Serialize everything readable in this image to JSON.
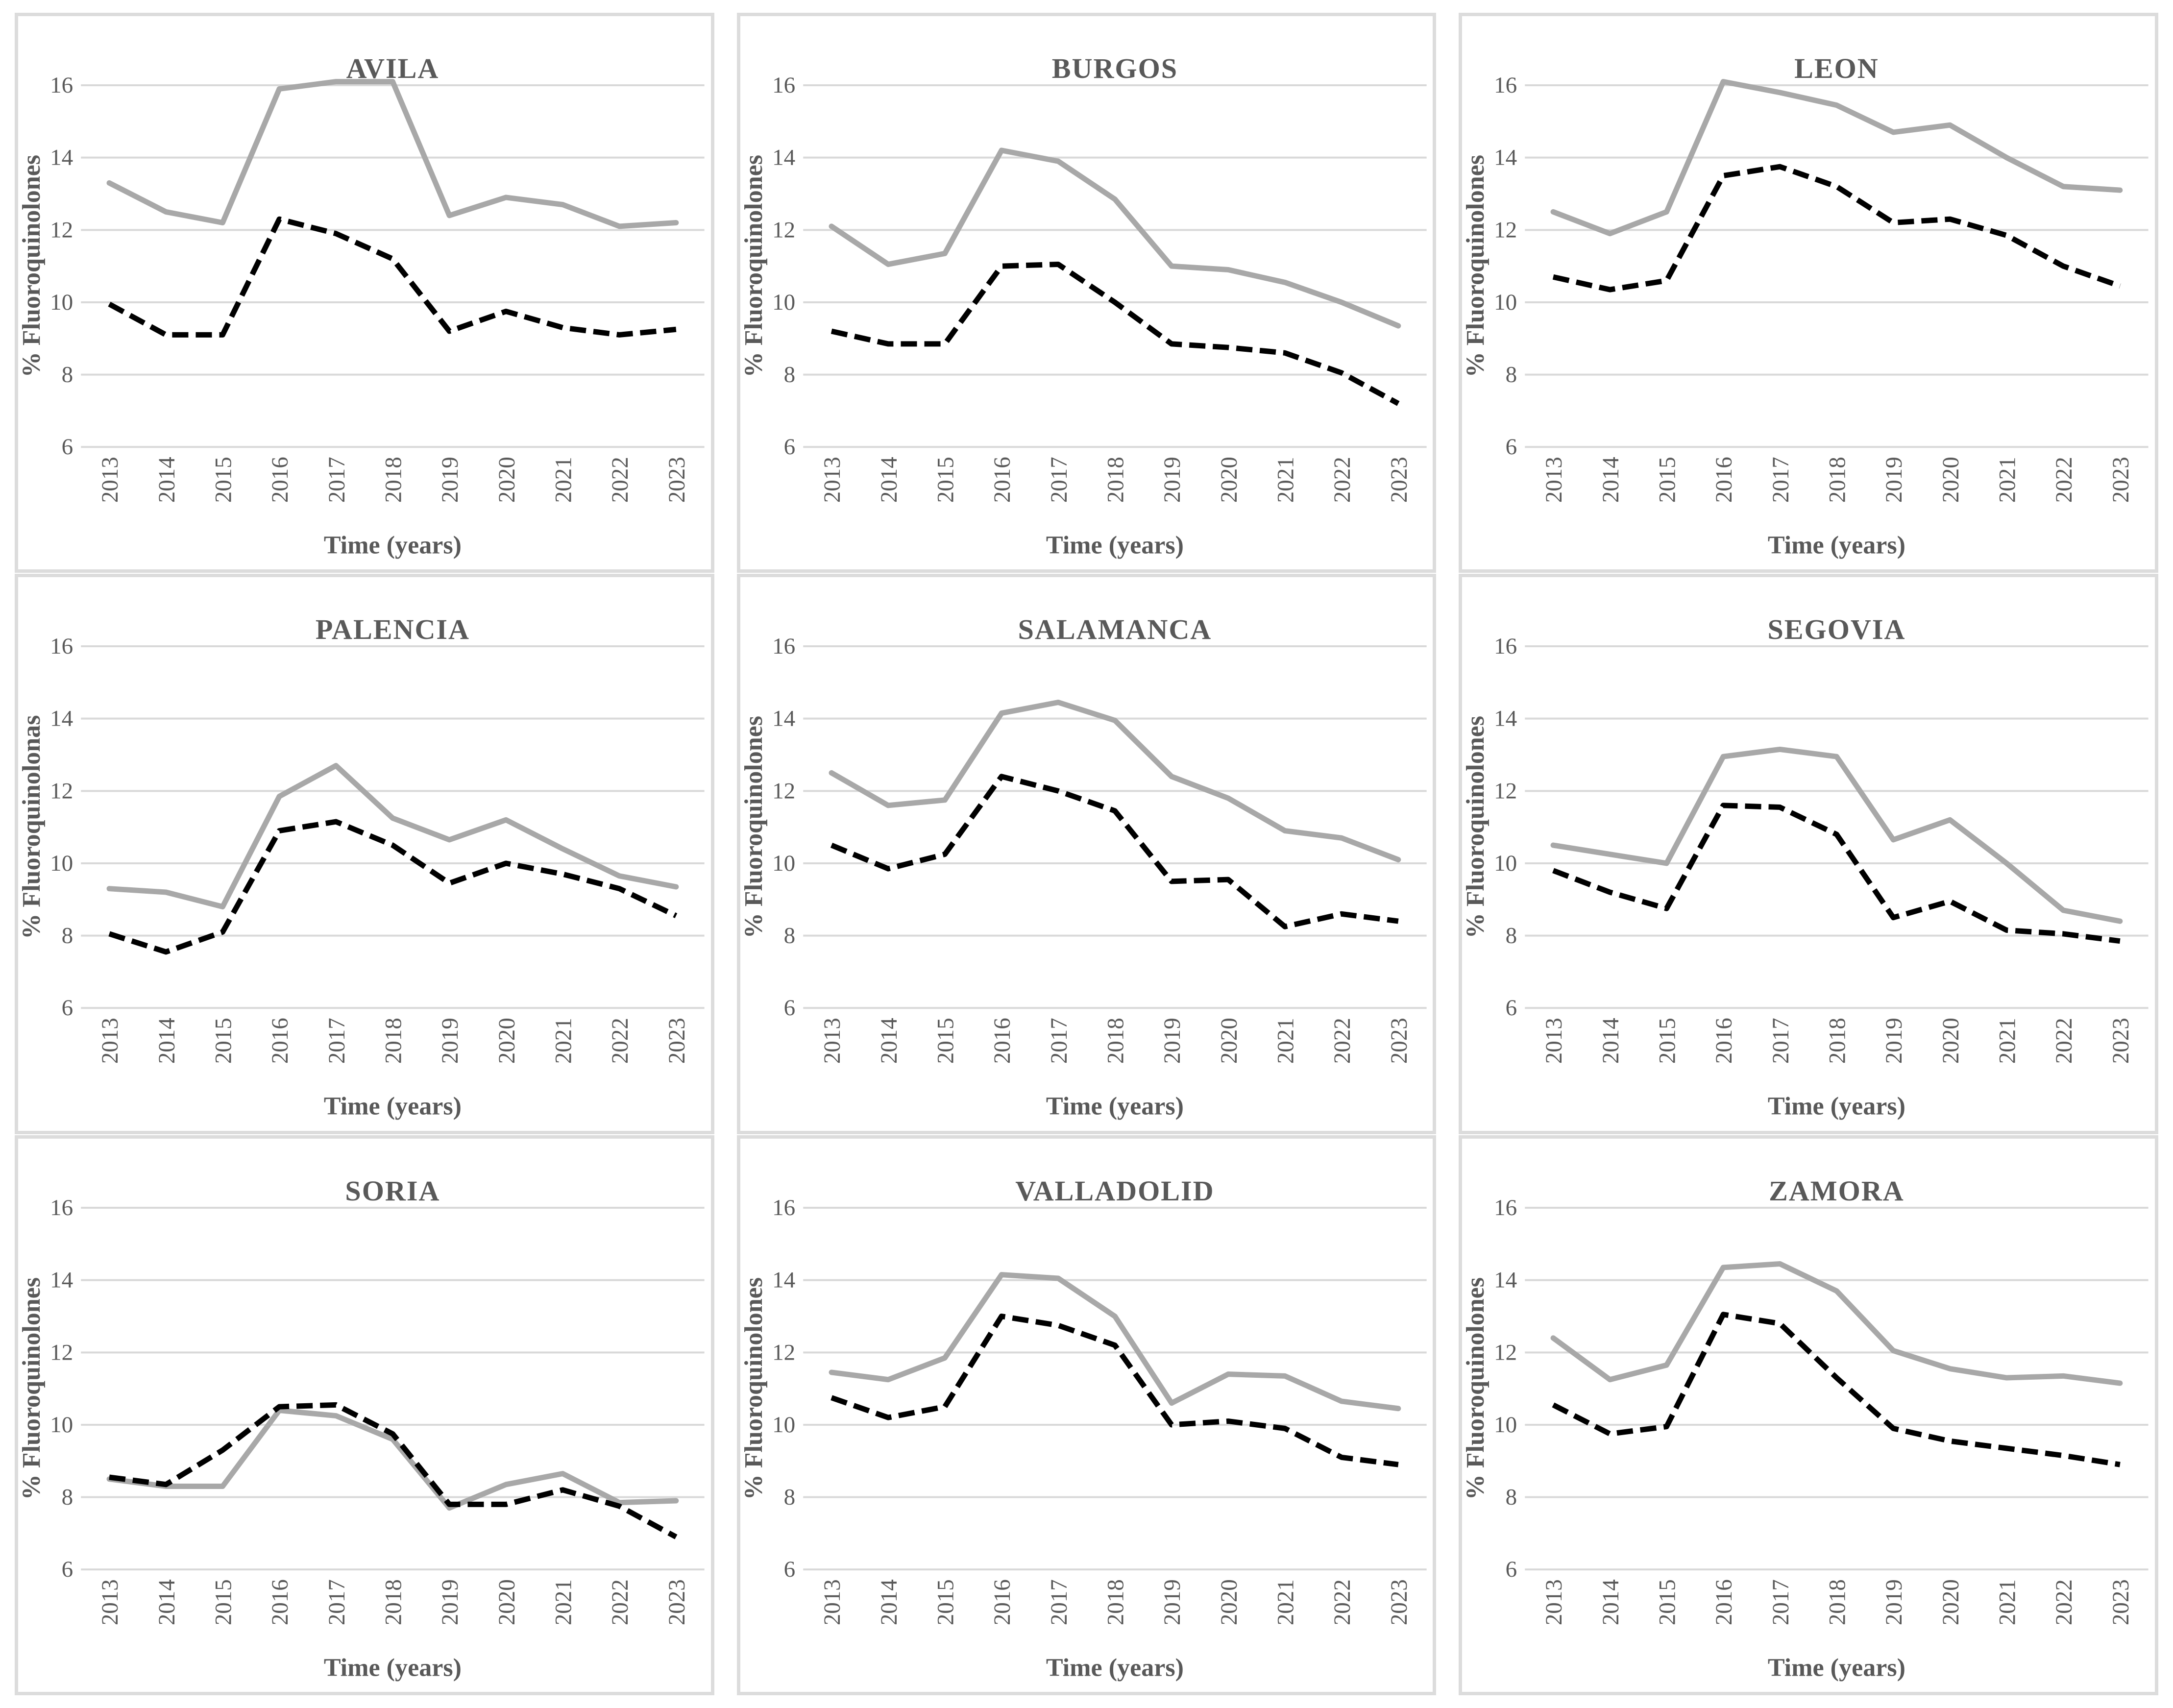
{
  "chart_style": {
    "solid_color": "#a8a8a8",
    "dashed_color": "#000000",
    "grid_color": "#d9d9d9",
    "text_color": "#595959",
    "panel_border_color": "#dcdcdc",
    "solid_width": 11,
    "dashed_width": 11,
    "dash_pattern": "33 15"
  },
  "chart_data": [
    {
      "type": "line",
      "title": "AVILA",
      "xlabel": "Time (years)",
      "ylabel": "% Fluoroquinolones",
      "categories": [
        "2013",
        "2014",
        "2015",
        "2016",
        "2017",
        "2018",
        "2019",
        "2020",
        "2021",
        "2022",
        "2023"
      ],
      "yticks": [
        6,
        8,
        10,
        12,
        14,
        16
      ],
      "ylim": [
        6,
        17.3
      ],
      "grid": true,
      "legend_position": "none",
      "series": [
        {
          "name": "solid",
          "style": "solid",
          "values": [
            13.3,
            12.5,
            12.2,
            15.9,
            16.1,
            16.1,
            12.4,
            12.9,
            12.7,
            12.1,
            12.2
          ]
        },
        {
          "name": "dashed",
          "style": "dashed",
          "values": [
            9.95,
            9.1,
            9.1,
            12.3,
            11.9,
            11.2,
            9.2,
            9.75,
            9.3,
            9.1,
            9.25
          ]
        }
      ]
    },
    {
      "type": "line",
      "title": "BURGOS",
      "xlabel": "Time (years)",
      "ylabel": "% Fluoroquinolones",
      "categories": [
        "2013",
        "2014",
        "2015",
        "2016",
        "2017",
        "2018",
        "2019",
        "2020",
        "2021",
        "2022",
        "2023"
      ],
      "yticks": [
        6,
        8,
        10,
        12,
        14,
        16
      ],
      "ylim": [
        6,
        17.3
      ],
      "grid": true,
      "legend_position": "none",
      "series": [
        {
          "name": "solid",
          "style": "solid",
          "values": [
            12.1,
            11.05,
            11.35,
            14.2,
            13.9,
            12.85,
            11.0,
            10.9,
            10.55,
            10.0,
            9.35
          ]
        },
        {
          "name": "dashed",
          "style": "dashed",
          "values": [
            9.2,
            8.85,
            8.85,
            11.0,
            11.05,
            10.0,
            8.85,
            8.75,
            8.6,
            8.05,
            7.2
          ]
        }
      ]
    },
    {
      "type": "line",
      "title": "LEON",
      "xlabel": "Time (years)",
      "ylabel": "% Fluoroquinolones",
      "categories": [
        "2013",
        "2014",
        "2015",
        "2016",
        "2017",
        "2018",
        "2019",
        "2020",
        "2021",
        "2022",
        "2023"
      ],
      "yticks": [
        6,
        8,
        10,
        12,
        14,
        16
      ],
      "ylim": [
        6,
        17.3
      ],
      "grid": true,
      "legend_position": "none",
      "series": [
        {
          "name": "solid",
          "style": "solid",
          "values": [
            12.5,
            11.9,
            12.5,
            16.1,
            15.8,
            15.45,
            14.7,
            14.9,
            14.0,
            13.2,
            13.1
          ]
        },
        {
          "name": "dashed",
          "style": "dashed",
          "values": [
            10.7,
            10.35,
            10.6,
            13.5,
            13.75,
            13.2,
            12.2,
            12.3,
            11.85,
            11.0,
            10.45
          ]
        }
      ]
    },
    {
      "type": "line",
      "title": "PALENCIA",
      "xlabel": "Time (years)",
      "ylabel": "% Fluoroquinolonas",
      "categories": [
        "2013",
        "2014",
        "2015",
        "2016",
        "2017",
        "2018",
        "2019",
        "2020",
        "2021",
        "2022",
        "2023"
      ],
      "yticks": [
        6,
        8,
        10,
        12,
        14,
        16
      ],
      "ylim": [
        6,
        17.3
      ],
      "grid": true,
      "legend_position": "none",
      "series": [
        {
          "name": "solid",
          "style": "solid",
          "values": [
            9.3,
            9.2,
            8.8,
            11.85,
            12.7,
            11.25,
            10.65,
            11.2,
            10.4,
            9.65,
            9.35
          ]
        },
        {
          "name": "dashed",
          "style": "dashed",
          "values": [
            8.05,
            7.55,
            8.1,
            10.9,
            11.15,
            10.5,
            9.45,
            10.0,
            9.7,
            9.3,
            8.55
          ]
        }
      ]
    },
    {
      "type": "line",
      "title": "SALAMANCA",
      "xlabel": "Time (years)",
      "ylabel": "% Fluoroquinolones",
      "categories": [
        "2013",
        "2014",
        "2015",
        "2016",
        "2017",
        "2018",
        "2019",
        "2020",
        "2021",
        "2022",
        "2023"
      ],
      "yticks": [
        6,
        8,
        10,
        12,
        14,
        16
      ],
      "ylim": [
        6,
        17.3
      ],
      "grid": true,
      "legend_position": "none",
      "series": [
        {
          "name": "solid",
          "style": "solid",
          "values": [
            12.5,
            11.6,
            11.75,
            14.15,
            14.45,
            13.95,
            12.4,
            11.8,
            10.9,
            10.7,
            10.1
          ]
        },
        {
          "name": "dashed",
          "style": "dashed",
          "values": [
            10.5,
            9.85,
            10.25,
            12.4,
            12.0,
            11.45,
            9.5,
            9.55,
            8.25,
            8.6,
            8.4
          ]
        }
      ]
    },
    {
      "type": "line",
      "title": "SEGOVIA",
      "xlabel": "Time (years)",
      "ylabel": "% Fluoroquinolones",
      "categories": [
        "2013",
        "2014",
        "2015",
        "2016",
        "2017",
        "2018",
        "2019",
        "2020",
        "2021",
        "2022",
        "2023"
      ],
      "yticks": [
        6,
        8,
        10,
        12,
        14,
        16
      ],
      "ylim": [
        6,
        17.3
      ],
      "grid": true,
      "legend_position": "none",
      "series": [
        {
          "name": "solid",
          "style": "solid",
          "values": [
            10.5,
            10.25,
            10.0,
            12.95,
            13.15,
            12.95,
            10.65,
            11.2,
            10.0,
            8.7,
            8.4
          ]
        },
        {
          "name": "dashed",
          "style": "dashed",
          "values": [
            9.8,
            9.2,
            8.75,
            11.6,
            11.55,
            10.8,
            8.5,
            8.95,
            8.15,
            8.05,
            7.85
          ]
        }
      ]
    },
    {
      "type": "line",
      "title": "SORIA",
      "xlabel": "Time (years)",
      "ylabel": "% Fluoroquinolones",
      "categories": [
        "2013",
        "2014",
        "2015",
        "2016",
        "2017",
        "2018",
        "2019",
        "2020",
        "2021",
        "2022",
        "2023"
      ],
      "yticks": [
        6,
        8,
        10,
        12,
        14,
        16
      ],
      "ylim": [
        6,
        17.3
      ],
      "grid": true,
      "legend_position": "none",
      "series": [
        {
          "name": "solid",
          "style": "solid",
          "values": [
            8.5,
            8.3,
            8.3,
            10.4,
            10.25,
            9.6,
            7.7,
            8.35,
            8.65,
            7.85,
            7.9
          ]
        },
        {
          "name": "dashed",
          "style": "dashed",
          "values": [
            8.55,
            8.35,
            9.3,
            10.5,
            10.55,
            9.75,
            7.8,
            7.8,
            8.2,
            7.75,
            6.9
          ]
        }
      ]
    },
    {
      "type": "line",
      "title": "VALLADOLID",
      "xlabel": "Time (years)",
      "ylabel": "% Fluoroquinolones",
      "categories": [
        "2013",
        "2014",
        "2015",
        "2016",
        "2017",
        "2018",
        "2019",
        "2020",
        "2021",
        "2022",
        "2023"
      ],
      "yticks": [
        6,
        8,
        10,
        12,
        14,
        16
      ],
      "ylim": [
        6,
        17.3
      ],
      "grid": true,
      "legend_position": "none",
      "series": [
        {
          "name": "solid",
          "style": "solid",
          "values": [
            11.45,
            11.25,
            11.85,
            14.15,
            14.05,
            13.0,
            10.6,
            11.4,
            11.35,
            10.65,
            10.45
          ]
        },
        {
          "name": "dashed",
          "style": "dashed",
          "values": [
            10.75,
            10.2,
            10.5,
            13.0,
            12.75,
            12.2,
            10.0,
            10.1,
            9.9,
            9.1,
            8.9
          ]
        }
      ]
    },
    {
      "type": "line",
      "title": "ZAMORA",
      "xlabel": "Time (years)",
      "ylabel": "% Fluoroquinolones",
      "categories": [
        "2013",
        "2014",
        "2015",
        "2016",
        "2017",
        "2018",
        "2019",
        "2020",
        "2021",
        "2022",
        "2023"
      ],
      "yticks": [
        6,
        8,
        10,
        12,
        14,
        16
      ],
      "ylim": [
        6,
        17.3
      ],
      "grid": true,
      "legend_position": "none",
      "series": [
        {
          "name": "solid",
          "style": "solid",
          "values": [
            12.4,
            11.25,
            11.65,
            14.35,
            14.45,
            13.7,
            12.05,
            11.55,
            11.3,
            11.35,
            11.15
          ]
        },
        {
          "name": "dashed",
          "style": "dashed",
          "values": [
            10.55,
            9.75,
            9.95,
            13.05,
            12.8,
            11.3,
            9.9,
            9.55,
            9.35,
            9.15,
            8.9
          ]
        }
      ]
    }
  ]
}
